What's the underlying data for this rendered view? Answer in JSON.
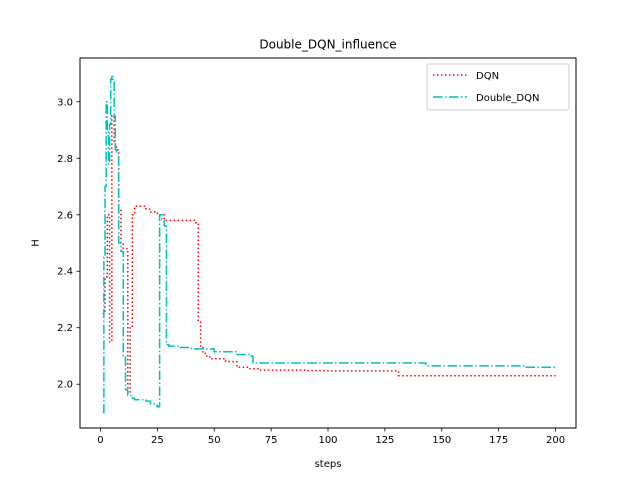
{
  "chart_data": {
    "type": "line",
    "title": "Double_DQN_influence",
    "xlabel": "steps",
    "ylabel": "H",
    "xlim": [
      -9,
      209
    ],
    "ylim": [
      1.845,
      3.155
    ],
    "xticks": [
      0,
      25,
      50,
      75,
      100,
      125,
      150,
      175,
      200
    ],
    "xtick_labels": [
      "0",
      "25",
      "50",
      "75",
      "100",
      "125",
      "150",
      "175",
      "200"
    ],
    "yticks": [
      2.0,
      2.2,
      2.4,
      2.6,
      2.8,
      3.0
    ],
    "ytick_labels": [
      "2.0",
      "2.2",
      "2.4",
      "2.6",
      "2.8",
      "3.0"
    ],
    "grid": false,
    "legend_position": "upper right",
    "series": [
      {
        "name": "DQN",
        "color": "#ff0000",
        "linestyle": "dotted",
        "x": [
          1,
          2,
          3,
          4,
          5,
          6,
          7,
          8,
          9,
          10,
          11,
          12,
          13,
          14,
          15,
          20,
          22,
          25,
          28,
          35,
          42,
          43,
          44,
          45,
          46,
          48,
          50,
          55,
          60,
          65,
          70,
          80,
          90,
          100,
          110,
          120,
          130,
          131,
          132,
          140,
          150,
          160,
          170,
          180,
          190,
          200
        ],
        "y": [
          2.25,
          2.38,
          2.6,
          2.15,
          2.95,
          2.85,
          2.83,
          2.62,
          2.5,
          2.48,
          2.48,
          1.97,
          2.2,
          2.6,
          2.63,
          2.62,
          2.61,
          2.6,
          2.58,
          2.58,
          2.57,
          2.22,
          2.13,
          2.11,
          2.1,
          2.09,
          2.09,
          2.08,
          2.06,
          2.055,
          2.05,
          2.05,
          2.048,
          2.047,
          2.047,
          2.047,
          2.047,
          2.03,
          2.03,
          2.03,
          2.03,
          2.03,
          2.03,
          2.03,
          2.03,
          2.03
        ]
      },
      {
        "name": "Double_DQN",
        "color": "#00bfbf",
        "linestyle": "dashdot",
        "x": [
          1,
          1.5,
          2,
          2.5,
          3,
          3.5,
          4,
          4.5,
          5,
          5.5,
          6,
          6.5,
          7,
          8,
          9,
          10,
          11,
          12,
          13,
          14,
          15,
          20,
          22,
          24,
          25,
          26,
          27,
          28,
          29,
          30,
          35,
          40,
          50,
          60,
          66,
          67,
          70,
          80,
          90,
          100,
          110,
          120,
          130,
          140,
          142,
          143,
          150,
          160,
          170,
          180,
          185,
          186,
          190,
          200
        ],
        "y": [
          1.9,
          2.45,
          2.7,
          3.0,
          2.9,
          2.78,
          2.92,
          3.08,
          3.09,
          3.07,
          2.95,
          2.83,
          2.82,
          2.5,
          2.47,
          2.1,
          1.98,
          1.96,
          1.96,
          1.95,
          1.945,
          1.94,
          1.93,
          1.925,
          1.92,
          2.6,
          2.58,
          2.56,
          2.14,
          2.135,
          2.13,
          2.125,
          2.115,
          2.105,
          2.1,
          2.075,
          2.075,
          2.075,
          2.075,
          2.075,
          2.075,
          2.075,
          2.075,
          2.075,
          2.075,
          2.065,
          2.065,
          2.065,
          2.065,
          2.065,
          2.065,
          2.06,
          2.06,
          2.06
        ]
      }
    ]
  }
}
